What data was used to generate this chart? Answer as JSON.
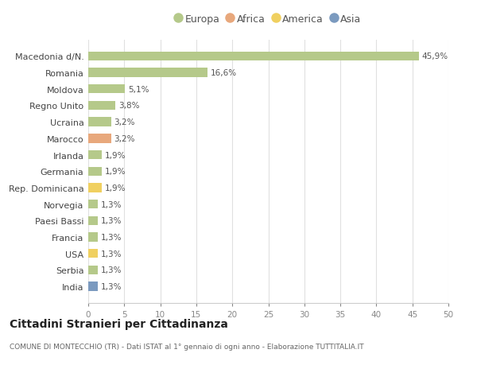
{
  "categories": [
    "Macedonia d/N.",
    "Romania",
    "Moldova",
    "Regno Unito",
    "Ucraina",
    "Marocco",
    "Irlanda",
    "Germania",
    "Rep. Dominicana",
    "Norvegia",
    "Paesi Bassi",
    "Francia",
    "USA",
    "Serbia",
    "India"
  ],
  "values": [
    45.9,
    16.6,
    5.1,
    3.8,
    3.2,
    3.2,
    1.9,
    1.9,
    1.9,
    1.3,
    1.3,
    1.3,
    1.3,
    1.3,
    1.3
  ],
  "labels": [
    "45,9%",
    "16,6%",
    "5,1%",
    "3,8%",
    "3,2%",
    "3,2%",
    "1,9%",
    "1,9%",
    "1,9%",
    "1,3%",
    "1,3%",
    "1,3%",
    "1,3%",
    "1,3%",
    "1,3%"
  ],
  "colors": [
    "#b5c98a",
    "#b5c98a",
    "#b5c98a",
    "#b5c98a",
    "#b5c98a",
    "#e8a87c",
    "#b5c98a",
    "#b5c98a",
    "#f0d060",
    "#b5c98a",
    "#b5c98a",
    "#b5c98a",
    "#f0d060",
    "#b5c98a",
    "#7b9abf"
  ],
  "legend": [
    {
      "label": "Europa",
      "color": "#b5c98a"
    },
    {
      "label": "Africa",
      "color": "#e8a87c"
    },
    {
      "label": "America",
      "color": "#f0d060"
    },
    {
      "label": "Asia",
      "color": "#7b9abf"
    }
  ],
  "xlim": [
    0,
    50
  ],
  "xticks": [
    0,
    5,
    10,
    15,
    20,
    25,
    30,
    35,
    40,
    45,
    50
  ],
  "title": "Cittadini Stranieri per Cittadinanza",
  "subtitle": "COMUNE DI MONTECCHIO (TR) - Dati ISTAT al 1° gennaio di ogni anno - Elaborazione TUTTITALIA.IT",
  "bg_color": "#ffffff",
  "grid_color": "#e0e0e0",
  "bar_alpha": 1.0,
  "bar_height": 0.55
}
